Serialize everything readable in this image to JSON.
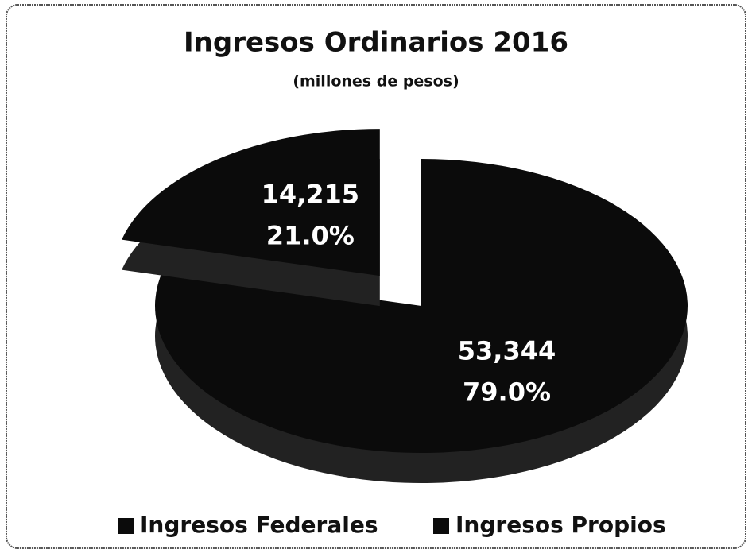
{
  "chart_data": {
    "type": "pie",
    "title": "Ingresos Ordinarios 2016",
    "subtitle": "(millones de pesos)",
    "categories": [
      "Ingresos Federales",
      "Ingresos Propios"
    ],
    "values": [
      53344,
      14215
    ],
    "value_labels": [
      "53,344",
      "14,215"
    ],
    "percent_labels": [
      "79.0%",
      "21.0%"
    ],
    "colors": [
      "#0b0b0b",
      "#0b0b0b"
    ],
    "legend": "bottom"
  }
}
